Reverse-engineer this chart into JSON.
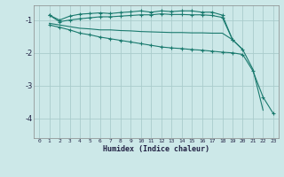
{
  "xlabel": "Humidex (Indice chaleur)",
  "bg_color": "#cce8e8",
  "grid_color": "#aacccc",
  "line_color": "#1a7a6e",
  "xlim": [
    -0.5,
    23.5
  ],
  "ylim": [
    -4.6,
    -0.55
  ],
  "yticks": [
    -4,
    -3,
    -2,
    -1
  ],
  "xticks": [
    0,
    1,
    2,
    3,
    4,
    5,
    6,
    7,
    8,
    9,
    10,
    11,
    12,
    13,
    14,
    15,
    16,
    17,
    18,
    19,
    20,
    21,
    22,
    23
  ],
  "line1_x": [
    1,
    2,
    3,
    4,
    5,
    6,
    7,
    8,
    9,
    10,
    11,
    12,
    13,
    14,
    15,
    16,
    17,
    18,
    19
  ],
  "line1_y": [
    -0.85,
    -1.0,
    -0.88,
    -0.82,
    -0.8,
    -0.78,
    -0.8,
    -0.77,
    -0.75,
    -0.72,
    -0.76,
    -0.72,
    -0.74,
    -0.72,
    -0.72,
    -0.76,
    -0.76,
    -0.85,
    -1.6
  ],
  "line2_x": [
    1,
    2,
    3,
    4,
    5,
    6,
    7,
    8,
    9,
    10,
    11,
    12,
    13,
    14,
    15,
    16,
    17,
    18,
    19,
    20
  ],
  "line2_y": [
    -0.85,
    -1.05,
    -1.0,
    -0.96,
    -0.93,
    -0.9,
    -0.9,
    -0.88,
    -0.86,
    -0.84,
    -0.84,
    -0.81,
    -0.83,
    -0.83,
    -0.84,
    -0.84,
    -0.86,
    -0.92,
    -1.6,
    -1.9
  ],
  "line3_x": [
    1,
    2,
    3,
    4,
    5,
    6,
    7,
    8,
    9,
    10,
    11,
    12,
    13,
    14,
    15,
    16,
    17,
    18,
    19,
    20,
    21,
    22
  ],
  "line3_y": [
    -1.1,
    -1.15,
    -1.2,
    -1.25,
    -1.27,
    -1.3,
    -1.3,
    -1.32,
    -1.33,
    -1.35,
    -1.36,
    -1.37,
    -1.38,
    -1.38,
    -1.39,
    -1.39,
    -1.4,
    -1.4,
    -1.6,
    -1.9,
    -2.5,
    -3.75
  ],
  "line4_x": [
    1,
    2,
    3,
    4,
    5,
    6,
    7,
    8,
    9,
    10,
    11,
    12,
    13,
    14,
    15,
    16,
    17,
    18,
    19,
    20,
    21,
    22,
    23
  ],
  "line4_y": [
    -1.15,
    -1.22,
    -1.3,
    -1.4,
    -1.45,
    -1.52,
    -1.57,
    -1.62,
    -1.67,
    -1.72,
    -1.77,
    -1.82,
    -1.85,
    -1.87,
    -1.9,
    -1.92,
    -1.95,
    -1.98,
    -2.0,
    -2.05,
    -2.55,
    -3.35,
    -3.85
  ]
}
